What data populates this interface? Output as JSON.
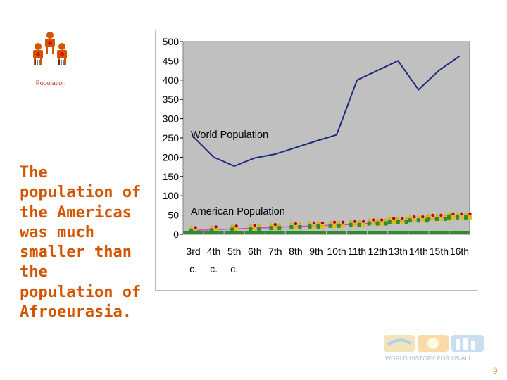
{
  "logo": {
    "label": "Population",
    "icon": "people-group-icon"
  },
  "headline": "The population of the Americas was much smaller than the population of Afroeurasia.",
  "footer": {
    "brand": "WORLD HISTORY FOR US ALL",
    "page": "9"
  },
  "colors": {
    "plot_background": "#c0c0c0",
    "world_line": "#1f2a80",
    "american_line": "#e040c0",
    "headline": "#d35400"
  },
  "chart_data": {
    "type": "line",
    "categories": [
      "3rd c.",
      "4th c.",
      "5th c.",
      "6th",
      "7th",
      "8th",
      "9th",
      "10th",
      "11th",
      "12th",
      "13th",
      "14th",
      "15th",
      "16th"
    ],
    "tick_labels_top": [
      "3rd",
      "4th",
      "5th",
      "6th",
      "7th",
      "8th",
      "9th",
      "10th",
      "11th",
      "12th",
      "13th",
      "14th",
      "15th",
      "16th"
    ],
    "tick_labels_bottom": [
      "c.",
      "c.",
      "c.",
      "",
      "",
      "",
      "",
      "",
      "",
      "",
      "",
      "",
      "",
      ""
    ],
    "y_ticks": [
      0,
      50,
      100,
      150,
      200,
      250,
      300,
      350,
      400,
      450,
      500
    ],
    "ylim": [
      0,
      500
    ],
    "grid": false,
    "annotations": [
      {
        "text": "World Population",
        "series": "world"
      },
      {
        "text": "American Population",
        "series": "american"
      }
    ],
    "series": [
      {
        "key": "world",
        "values": [
          253,
          200,
          177,
          198,
          208,
          225,
          242,
          258,
          400,
          425,
          450,
          375,
          425,
          462
        ]
      },
      {
        "key": "american",
        "values": [
          10,
          12,
          14,
          16,
          18,
          20,
          22,
          24,
          26,
          30,
          34,
          38,
          42,
          46
        ]
      }
    ]
  }
}
